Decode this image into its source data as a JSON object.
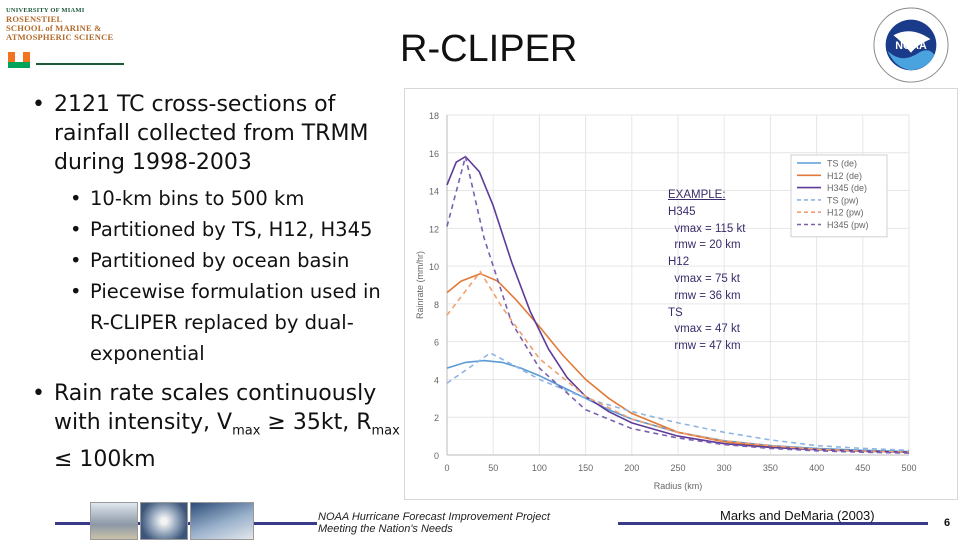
{
  "slide": {
    "title": "R-CLIPER",
    "logo_left": {
      "lines": [
        "UNIVERSITY OF MIAMI",
        "ROSENSTIEL",
        "SCHOOL of MARINE &",
        "ATMOSPHERIC SCIENCE"
      ]
    },
    "logo_right": {
      "text": "NOAA"
    },
    "bullets": {
      "main1": "2121 TC cross-sections of rainfall collected from TRMM during 1998-2003",
      "subs": [
        "10-km bins to 500 km",
        "Partitioned by TS, H12, H345",
        "Partitioned by ocean basin",
        "Piecewise formulation used in R-CLIPER replaced by dual-exponential"
      ],
      "main2_pre": "Rain rate scales continuously with intensity, V",
      "main2_sub1": "max",
      "main2_mid": " ≥ 35kt, R",
      "main2_sub2": "max",
      "main2_post": " ≤ 100km"
    },
    "example": {
      "lines": [
        "EXAMPLE:",
        "H345",
        "  vmax = 115 kt",
        "  rmw = 20 km",
        "H12",
        "  vmax = 75 kt",
        "  rmw = 36 km",
        "TS",
        "  vmax = 47 kt",
        "  rmw = 47 km"
      ]
    },
    "footer": {
      "project_line1": "NOAA Hurricane Forecast Improvement Project",
      "project_line2": "Meeting the Nation's Needs",
      "citation": "Marks and DeMaria (2003)",
      "page_number": "6"
    }
  },
  "chart_data": {
    "type": "line",
    "title": "",
    "xlabel": "Radius (km)",
    "ylabel": "Rainrate (mm/hr)",
    "xlim": [
      0,
      500
    ],
    "ylim": [
      0,
      18
    ],
    "xticks": [
      0,
      50,
      100,
      150,
      200,
      250,
      300,
      350,
      400,
      450,
      500
    ],
    "yticks": [
      0,
      2,
      4,
      6,
      8,
      10,
      12,
      14,
      16,
      18
    ],
    "grid": true,
    "legend_position": "top-right",
    "series": [
      {
        "name": "TS (de)",
        "color": "#5b9bd5",
        "dash": false,
        "x": [
          0,
          20,
          40,
          60,
          80,
          100,
          125,
          150,
          175,
          200,
          250,
          300,
          350,
          400,
          450,
          500
        ],
        "y": [
          4.6,
          4.9,
          5.0,
          4.9,
          4.6,
          4.2,
          3.6,
          3.0,
          2.4,
          1.9,
          1.2,
          0.75,
          0.5,
          0.35,
          0.25,
          0.18
        ]
      },
      {
        "name": "H12 (de)",
        "color": "#e07b39",
        "dash": false,
        "x": [
          0,
          15,
          36,
          55,
          75,
          100,
          125,
          150,
          175,
          200,
          250,
          300,
          350,
          400,
          450,
          500
        ],
        "y": [
          8.6,
          9.2,
          9.6,
          9.2,
          8.2,
          6.8,
          5.3,
          4.0,
          3.0,
          2.2,
          1.2,
          0.7,
          0.45,
          0.3,
          0.2,
          0.15
        ]
      },
      {
        "name": "H345 (de)",
        "color": "#5e3c99",
        "dash": false,
        "x": [
          0,
          10,
          20,
          35,
          50,
          70,
          90,
          110,
          130,
          150,
          175,
          200,
          250,
          300,
          350,
          400,
          450,
          500
        ],
        "y": [
          14.3,
          15.5,
          15.8,
          15.0,
          13.2,
          10.2,
          7.6,
          5.6,
          4.1,
          3.1,
          2.3,
          1.7,
          1.0,
          0.6,
          0.4,
          0.28,
          0.2,
          0.15
        ]
      },
      {
        "name": "TS (pw)",
        "color": "#8fb5e0",
        "dash": true,
        "x": [
          0,
          47,
          70,
          100,
          150,
          200,
          250,
          300,
          350,
          400,
          450,
          500
        ],
        "y": [
          3.8,
          5.4,
          4.8,
          4.0,
          3.0,
          2.3,
          1.7,
          1.2,
          0.8,
          0.5,
          0.35,
          0.25
        ]
      },
      {
        "name": "H12 (pw)",
        "color": "#f0a070",
        "dash": true,
        "x": [
          0,
          36,
          60,
          100,
          150,
          200,
          250,
          300,
          350,
          400,
          450,
          500
        ],
        "y": [
          7.4,
          9.7,
          7.8,
          5.1,
          3.1,
          1.9,
          1.2,
          0.75,
          0.5,
          0.3,
          0.2,
          0.15
        ]
      },
      {
        "name": "H345 (pw)",
        "color": "#7a5fb0",
        "dash": true,
        "x": [
          0,
          20,
          40,
          70,
          100,
          150,
          200,
          250,
          300,
          350,
          400,
          450,
          500
        ],
        "y": [
          12.1,
          15.8,
          11.5,
          7.0,
          4.6,
          2.4,
          1.4,
          0.9,
          0.55,
          0.35,
          0.22,
          0.15,
          0.1
        ]
      }
    ]
  }
}
